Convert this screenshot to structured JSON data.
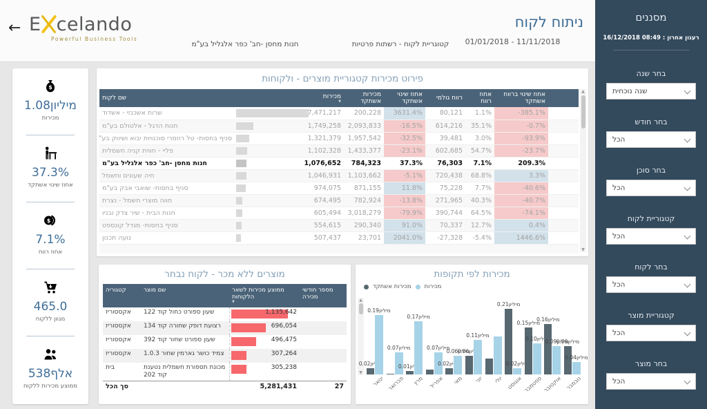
{
  "header": {
    "back_icon": "←",
    "logo_pre": "E",
    "logo_post": "celando",
    "tagline": "Powerful Business Tools",
    "store_context": "חנות מחסן -חב' כפר אלגליל בע\"מ",
    "category_context": "קטוגריית לקוח - רשתות פרטיות",
    "title": "ניתוח לקוח",
    "date_range": "01/01/2018 - 11/11/2018"
  },
  "filters_panel": {
    "title": "מסננים",
    "last_refresh": "רענון אחרון : 08:49 16/12/2018",
    "filters": [
      {
        "label": "בחר שנה",
        "value": "שנה נוכחית"
      },
      {
        "label": "בחר חודש",
        "value": "הכל"
      },
      {
        "label": "בחר סוכן",
        "value": "הכל"
      },
      {
        "label": "קטגוריית לקוח",
        "value": "הכל"
      },
      {
        "label": "בחר לקוח",
        "value": "הכל"
      },
      {
        "label": "קטגוריית מוצר",
        "value": "הכל"
      },
      {
        "label": "בחר מוצר",
        "value": "הכל"
      }
    ]
  },
  "kpis": [
    {
      "icon": "money-bag-icon",
      "value": "1.08מיליון",
      "label": "מכירות"
    },
    {
      "icon": "person-desk-icon",
      "value": "37.3%",
      "label": "אחוז שינוי אשתקד"
    },
    {
      "icon": "coins-icon",
      "value": "7.1%",
      "label": "אחוז רווח"
    },
    {
      "icon": "cart-icon",
      "value": "465.0",
      "label": "מגוון ללקוח"
    },
    {
      "icon": "people-icon",
      "value": "538אלף",
      "label": "ממוצע מכירות ללקוח"
    }
  ],
  "sales_table": {
    "title": "פירוט מכירות קטגוריית מוצרים - ולקוחות",
    "columns": [
      "שם לקוח",
      "מכירות",
      "מכירות אשתקד",
      "אחוז שינוי אשתקד",
      "רווח גולמי",
      "אחוז רווח",
      "אחוז שינוי ברווח אשתקד"
    ],
    "sorted_column": "מכירות",
    "rows": [
      {
        "name": "שרות אשכנזי - אשדוד",
        "sales": "7,471,217",
        "bar": 1.0,
        "ly": "200,228",
        "chg": "3631.4%",
        "chgT": "pos",
        "gp": "80,121",
        "pp": "1.1%",
        "pchg": "-385.1%",
        "pchgT": "neg",
        "sel": false
      },
      {
        "name": "חנות הדגל - אלטולם בע\"מ",
        "sales": "1,749,258",
        "bar": 0.234,
        "ly": "2,093,833",
        "chg": "-16.5%",
        "chgT": "neg",
        "gp": "614,216",
        "pp": "35.1%",
        "pchg": "-0.7%",
        "pchgT": "neg",
        "sel": false
      },
      {
        "name": "סניף בחסות- טל רוזמרי סוכנויות יבוא ושיווק בע\"מ",
        "sales": "1,321,379",
        "bar": 0.177,
        "ly": "1,957,542",
        "chg": "-32.5%",
        "chgT": "neg",
        "gp": "39,481",
        "pp": "3.0%",
        "pchg": "-93.9%",
        "pchgT": "neg",
        "sel": false
      },
      {
        "name": "פליי - חווית קניה חשמלית",
        "sales": "1,102,328",
        "bar": 0.148,
        "ly": "1,433,377",
        "chg": "-23.1%",
        "chgT": "neg",
        "gp": "602,685",
        "pp": "54.7%",
        "pchg": "-23.7%",
        "pchgT": "neg",
        "sel": false
      },
      {
        "name": "חנות מחסן -חב' כפר אלגליל בע\"מ",
        "sales": "1,076,652",
        "bar": 0.144,
        "ly": "784,323",
        "chg": "37.3%",
        "chgT": "sel",
        "gp": "76,303",
        "pp": "7.1%",
        "pchg": "209.3%",
        "pchgT": "sel",
        "sel": true
      },
      {
        "name": "חיה שעונים וחשמל",
        "sales": "1,046,931",
        "bar": 0.14,
        "ly": "1,103,662",
        "chg": "-5.1%",
        "chgT": "neg",
        "gp": "720,438",
        "pp": "68.8%",
        "pchg": "3.3%",
        "pchgT": "pos",
        "sel": false
      },
      {
        "name": "סניף בחסות- שואבי אבק בע\"מ",
        "sales": "974,075",
        "bar": 0.13,
        "ly": "871,155",
        "chg": "11.8%",
        "chgT": "pos",
        "gp": "75,228",
        "pp": "7.7%",
        "pchg": "-40.6%",
        "pchgT": "neg",
        "sel": false
      },
      {
        "name": "חווה מוצרי חשמל - נצרת",
        "sales": "674,495",
        "bar": 0.09,
        "ly": "782,924",
        "chg": "-13.8%",
        "chgT": "neg",
        "gp": "271,965",
        "pp": "40.3%",
        "pchg": "-40.7%",
        "pchgT": "neg",
        "sel": false
      },
      {
        "name": "חנות הבית - שיר צדק ובניו",
        "sales": "605,494",
        "bar": 0.081,
        "ly": "3,018,279",
        "chg": "-79.9%",
        "chgT": "neg",
        "gp": "390,744",
        "pp": "64.5%",
        "pchg": "-74.1%",
        "pchgT": "neg",
        "sel": false
      },
      {
        "name": "סניף בחסות- מגדל קונספט",
        "sales": "554,615",
        "bar": 0.074,
        "ly": "290,340",
        "chg": "91.0%",
        "chgT": "pos",
        "gp": "70,337",
        "pp": "12.7%",
        "pchg": "0.4%",
        "pchgT": "pos",
        "sel": false
      },
      {
        "name": "נועה תכנון",
        "sales": "507,437",
        "bar": 0.068,
        "ly": "23,701",
        "chg": "2041.0%",
        "chgT": "pos",
        "gp": "-27,328",
        "pp": "-5.4%",
        "pchg": "1446.6%",
        "pchgT": "pos",
        "sel": false
      }
    ]
  },
  "no_sale_table": {
    "title": "מוצרים ללא מכר - לקוח נבחר",
    "columns": [
      "קטגוריה",
      "שם מוצר",
      "ממוצע מכירות לשאר הלקוחות",
      "מספר חודשי מכירה"
    ],
    "sorted_column": "ממוצע מכירות לשאר הלקוחות",
    "rows": [
      {
        "category": "אקססוריז",
        "product": "שעון ספורט כחול קוד 122",
        "product_line2": "",
        "avg": "1,135,642",
        "bar": 1.0,
        "months": ""
      },
      {
        "category": "אקססוריז",
        "product": "רצועת דופק שחורה קוד 134",
        "product_line2": "",
        "avg": "696,054",
        "bar": 0.61,
        "months": ""
      },
      {
        "category": "אקססוריז",
        "product": "שעון ספורט שחור קוד 392",
        "product_line2": "",
        "avg": "496,475",
        "bar": 0.44,
        "months": ""
      },
      {
        "category": "אקססוריז",
        "product": "צמיד כושר גארמין שחור 1.0.3",
        "product_line2": "",
        "avg": "307,264",
        "bar": 0.27,
        "months": ""
      },
      {
        "category": "בית",
        "product": "מכונת תספורת חשמלית נטענת",
        "product_line2": "קוד 202",
        "avg": "305,238",
        "bar": 0.27,
        "months": ""
      }
    ],
    "total_label": "סך הכל",
    "total_avg": "5,281,431",
    "total_months": "27"
  },
  "chart_data": {
    "type": "bar",
    "title": "מכירות לפי תקופות",
    "legend_position": "top-left",
    "unit": "מיליון",
    "ylim": [
      0,
      0.22
    ],
    "grid": false,
    "categories": [
      "ינואר",
      "פברואר",
      "מרץ",
      "אפריל",
      "מאי",
      "יוני",
      "יולי",
      "אוגוסט",
      "ספטמבר",
      "אוקטובר",
      "נובמבר"
    ],
    "series": [
      {
        "name": "מכירות אשתקד",
        "color": "#586871",
        "values": [
          0.02,
          0.003,
          0.01,
          0.015,
          0.02,
          0.06,
          0.05,
          0.21,
          0.15,
          0.16,
          0.09
        ],
        "labels": [
          "0.02מיליון",
          null,
          "0.01מיליון",
          null,
          "0.02מיליון",
          "0.06מיליון",
          null,
          "0.21מיליון",
          "0.15מיליון",
          "0.16מיליון",
          "0.09מיליון"
        ]
      },
      {
        "name": "מכירות",
        "color": "#a6d3e7",
        "values": [
          0.19,
          0.07,
          0.17,
          0.07,
          0.06,
          0.11,
          0.12,
          0.02,
          0.1,
          0.09,
          0.04
        ],
        "labels": [
          "0.19מיליון",
          "0.07מיליון",
          "0.17מיליון",
          "0.07מיליון",
          "0.06מיליון",
          "0.11מיליון",
          null,
          "0.02מיליון",
          "0.10מיליון",
          "0.09מיליון",
          "0.04מיליון"
        ]
      }
    ]
  },
  "colors": {
    "accent_blue": "#3d6b94",
    "sidebar_bg": "#33495c",
    "table_header": "#4a6378",
    "positive_cell": "#d2e1ea",
    "negative_cell": "#f6caca",
    "selected_cell": "#4e93a2",
    "red_bar": "#f6686c",
    "bar_last_year": "#586871",
    "bar_current": "#a6d3e7"
  }
}
